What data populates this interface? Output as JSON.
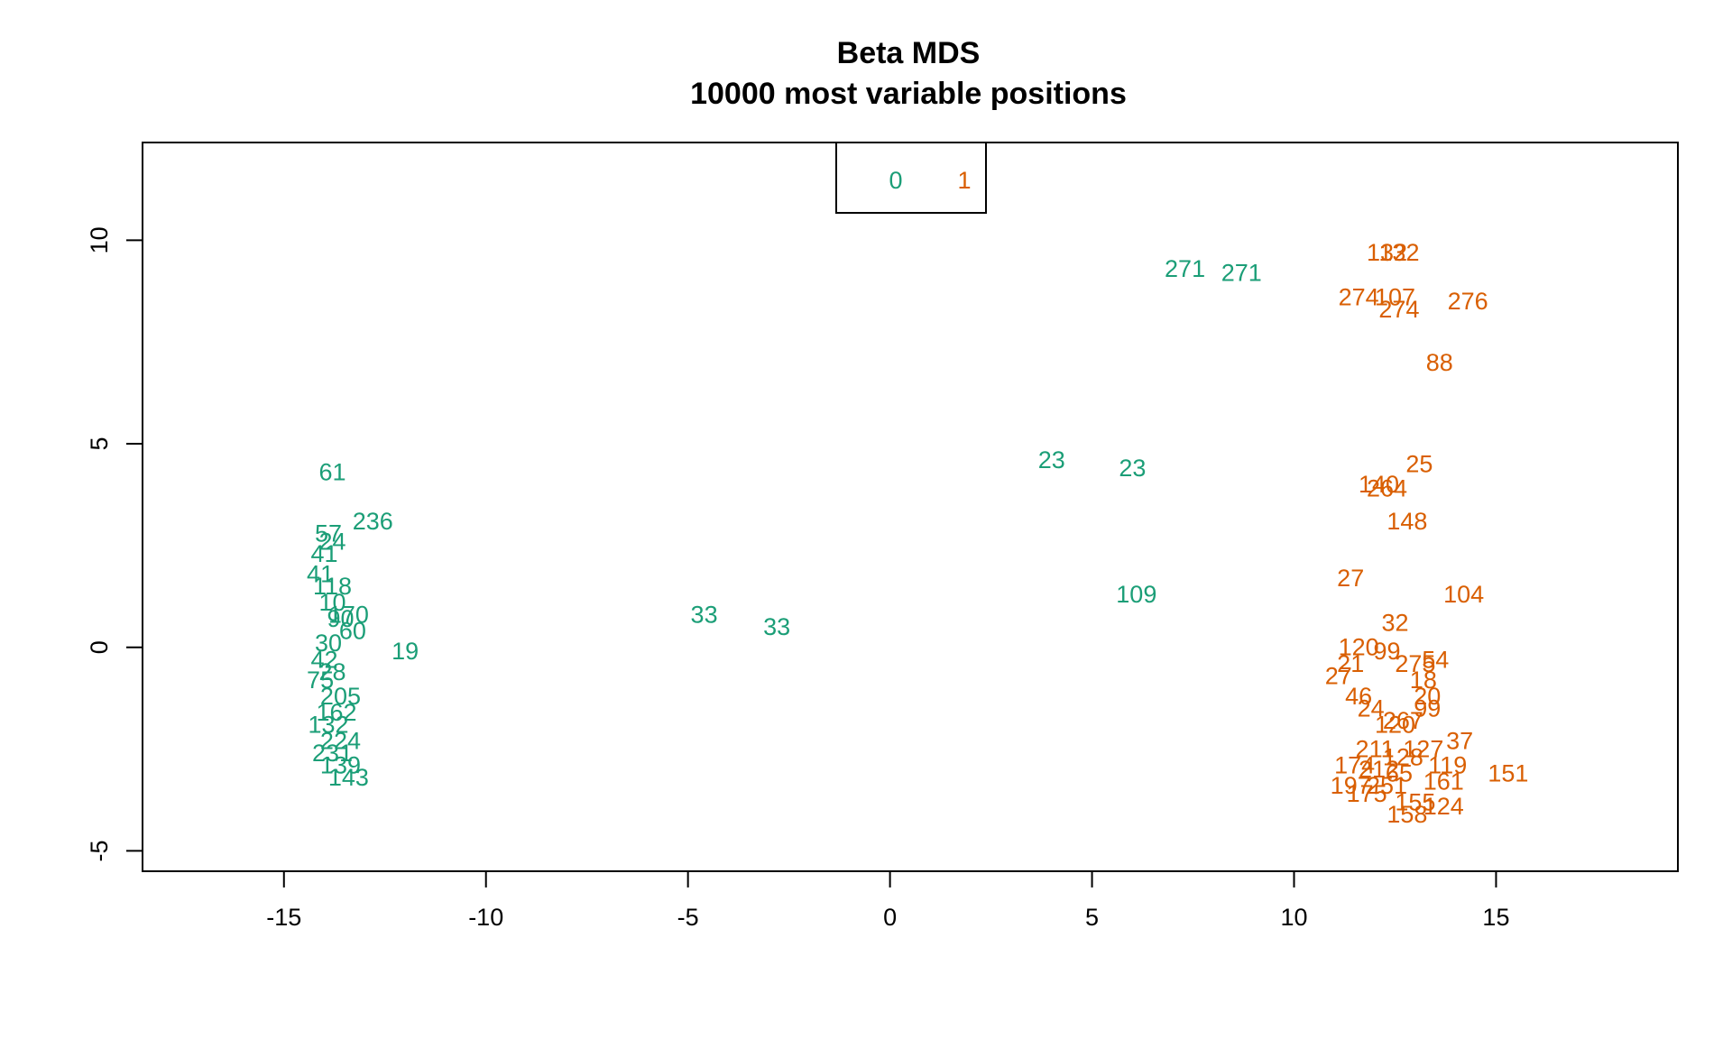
{
  "chart_data": {
    "type": "scatter",
    "title": "Beta MDS",
    "subtitle": "10000 most variable positions",
    "xlabel": "",
    "ylabel": "",
    "xlim": [
      -18.5,
      19.5
    ],
    "ylim": [
      -5.5,
      12.4
    ],
    "x_ticks": [
      -15,
      -10,
      -5,
      0,
      5,
      10,
      15
    ],
    "y_ticks": [
      -5,
      0,
      5,
      10
    ],
    "grid": false,
    "legend": {
      "placement": "top-center",
      "entries": [
        {
          "label": "0",
          "color": "#1b9e77"
        },
        {
          "label": "1",
          "color": "#d95f02"
        }
      ]
    },
    "series": [
      {
        "name": "0",
        "color": "#1b9e77",
        "points": [
          {
            "label": "61",
            "x": -13.8,
            "y": 4.3
          },
          {
            "label": "236",
            "x": -12.8,
            "y": 3.1
          },
          {
            "label": "57",
            "x": -13.9,
            "y": 2.8
          },
          {
            "label": "24",
            "x": -13.8,
            "y": 2.6
          },
          {
            "label": "41",
            "x": -14.0,
            "y": 2.3
          },
          {
            "label": "41",
            "x": -14.1,
            "y": 1.8
          },
          {
            "label": "118",
            "x": -13.8,
            "y": 1.5
          },
          {
            "label": "10",
            "x": -13.8,
            "y": 1.1
          },
          {
            "label": "90",
            "x": -13.6,
            "y": 0.7
          },
          {
            "label": "170",
            "x": -13.4,
            "y": 0.8
          },
          {
            "label": "60",
            "x": -13.3,
            "y": 0.4
          },
          {
            "label": "30",
            "x": -13.9,
            "y": 0.1
          },
          {
            "label": "42",
            "x": -14.0,
            "y": -0.3
          },
          {
            "label": "28",
            "x": -13.8,
            "y": -0.6
          },
          {
            "label": "75",
            "x": -14.1,
            "y": -0.8
          },
          {
            "label": "19",
            "x": -12.0,
            "y": -0.1
          },
          {
            "label": "205",
            "x": -13.6,
            "y": -1.2
          },
          {
            "label": "162",
            "x": -13.7,
            "y": -1.6
          },
          {
            "label": "132",
            "x": -13.9,
            "y": -1.9
          },
          {
            "label": "224",
            "x": -13.6,
            "y": -2.3
          },
          {
            "label": "231",
            "x": -13.8,
            "y": -2.6
          },
          {
            "label": "139",
            "x": -13.6,
            "y": -2.9
          },
          {
            "label": "143",
            "x": -13.4,
            "y": -3.2
          },
          {
            "label": "33",
            "x": -4.6,
            "y": 0.8
          },
          {
            "label": "33",
            "x": -2.8,
            "y": 0.5
          },
          {
            "label": "23",
            "x": 4.0,
            "y": 4.6
          },
          {
            "label": "23",
            "x": 6.0,
            "y": 4.4
          },
          {
            "label": "109",
            "x": 6.1,
            "y": 1.3
          },
          {
            "label": "271",
            "x": 7.3,
            "y": 9.3
          },
          {
            "label": "271",
            "x": 8.7,
            "y": 9.2
          }
        ]
      },
      {
        "name": "1",
        "color": "#d95f02",
        "points": [
          {
            "label": "132",
            "x": 12.3,
            "y": 9.7
          },
          {
            "label": "132",
            "x": 12.6,
            "y": 9.7
          },
          {
            "label": "274",
            "x": 11.6,
            "y": 8.6
          },
          {
            "label": "107",
            "x": 12.5,
            "y": 8.6
          },
          {
            "label": "274",
            "x": 12.6,
            "y": 8.3
          },
          {
            "label": "276",
            "x": 14.3,
            "y": 8.5
          },
          {
            "label": "88",
            "x": 13.6,
            "y": 7.0
          },
          {
            "label": "25",
            "x": 13.1,
            "y": 4.5
          },
          {
            "label": "140",
            "x": 12.1,
            "y": 4.0
          },
          {
            "label": "264",
            "x": 12.3,
            "y": 3.9
          },
          {
            "label": "148",
            "x": 12.8,
            "y": 3.1
          },
          {
            "label": "27",
            "x": 11.4,
            "y": 1.7
          },
          {
            "label": "104",
            "x": 14.2,
            "y": 1.3
          },
          {
            "label": "32",
            "x": 12.5,
            "y": 0.6
          },
          {
            "label": "120",
            "x": 11.6,
            "y": 0.0
          },
          {
            "label": "99",
            "x": 12.3,
            "y": -0.1
          },
          {
            "label": "54",
            "x": 13.5,
            "y": -0.3
          },
          {
            "label": "21",
            "x": 11.4,
            "y": -0.4
          },
          {
            "label": "275",
            "x": 13.0,
            "y": -0.4
          },
          {
            "label": "27",
            "x": 11.1,
            "y": -0.7
          },
          {
            "label": "18",
            "x": 13.2,
            "y": -0.8
          },
          {
            "label": "46",
            "x": 11.6,
            "y": -1.2
          },
          {
            "label": "20",
            "x": 13.3,
            "y": -1.2
          },
          {
            "label": "24",
            "x": 11.9,
            "y": -1.5
          },
          {
            "label": "99",
            "x": 13.3,
            "y": -1.5
          },
          {
            "label": "267",
            "x": 12.7,
            "y": -1.8
          },
          {
            "label": "120",
            "x": 12.5,
            "y": -1.9
          },
          {
            "label": "37",
            "x": 14.1,
            "y": -2.3
          },
          {
            "label": "211",
            "x": 12.0,
            "y": -2.5
          },
          {
            "label": "127",
            "x": 13.2,
            "y": -2.5
          },
          {
            "label": "128",
            "x": 12.7,
            "y": -2.7
          },
          {
            "label": "119",
            "x": 13.8,
            "y": -2.9
          },
          {
            "label": "174",
            "x": 11.5,
            "y": -2.9
          },
          {
            "label": "212",
            "x": 12.1,
            "y": -3.0
          },
          {
            "label": "151",
            "x": 15.3,
            "y": -3.1
          },
          {
            "label": "65",
            "x": 12.6,
            "y": -3.1
          },
          {
            "label": "161",
            "x": 13.7,
            "y": -3.3
          },
          {
            "label": "197",
            "x": 11.4,
            "y": -3.4
          },
          {
            "label": "251",
            "x": 12.3,
            "y": -3.4
          },
          {
            "label": "175",
            "x": 11.8,
            "y": -3.6
          },
          {
            "label": "155",
            "x": 13.0,
            "y": -3.8
          },
          {
            "label": "124",
            "x": 13.7,
            "y": -3.9
          },
          {
            "label": "158",
            "x": 12.8,
            "y": -4.1
          }
        ]
      }
    ]
  }
}
